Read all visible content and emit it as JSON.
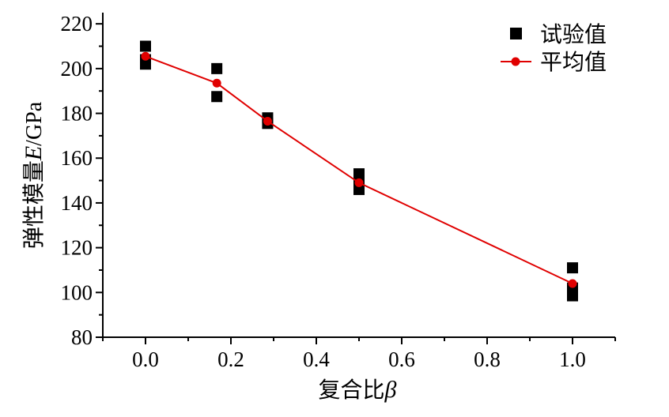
{
  "chart_data": {
    "type": "scatter",
    "title": "",
    "xlabel": "复合比",
    "xlabel_symbol": "β",
    "ylabel": "弹性模量",
    "ylabel_symbol": "E",
    "ylabel_unit": "/GPa",
    "xlim": [
      -0.1,
      1.1
    ],
    "ylim": [
      80,
      225
    ],
    "x_ticks": [
      0.0,
      0.2,
      0.4,
      0.6,
      0.8,
      1.0
    ],
    "x_tick_labels": [
      "0.0",
      "0.2",
      "0.4",
      "0.6",
      "0.8",
      "1.0"
    ],
    "y_ticks": [
      80,
      100,
      120,
      140,
      160,
      180,
      200,
      220
    ],
    "y_tick_labels": [
      "80",
      "100",
      "120",
      "140",
      "160",
      "180",
      "200",
      "220"
    ],
    "grid": false,
    "legend_position": "top-right",
    "series": [
      {
        "name": "试验值",
        "kind": "scatter",
        "marker": "square",
        "color": "#000000",
        "points": [
          [
            0.0,
            210
          ],
          [
            0.0,
            204
          ],
          [
            0.0,
            202
          ],
          [
            0.167,
            200
          ],
          [
            0.167,
            187.5
          ],
          [
            0.286,
            178
          ],
          [
            0.286,
            175.5
          ],
          [
            0.5,
            153
          ],
          [
            0.5,
            146
          ],
          [
            0.5,
            149
          ],
          [
            1.0,
            111
          ],
          [
            1.0,
            98.5
          ],
          [
            1.0,
            102
          ]
        ]
      },
      {
        "name": "平均值",
        "kind": "line",
        "marker": "circle",
        "color": "#e00000",
        "points": [
          [
            0.0,
            205.5
          ],
          [
            0.167,
            193.5
          ],
          [
            0.286,
            176.5
          ],
          [
            0.5,
            149
          ],
          [
            1.0,
            104
          ]
        ]
      }
    ]
  }
}
